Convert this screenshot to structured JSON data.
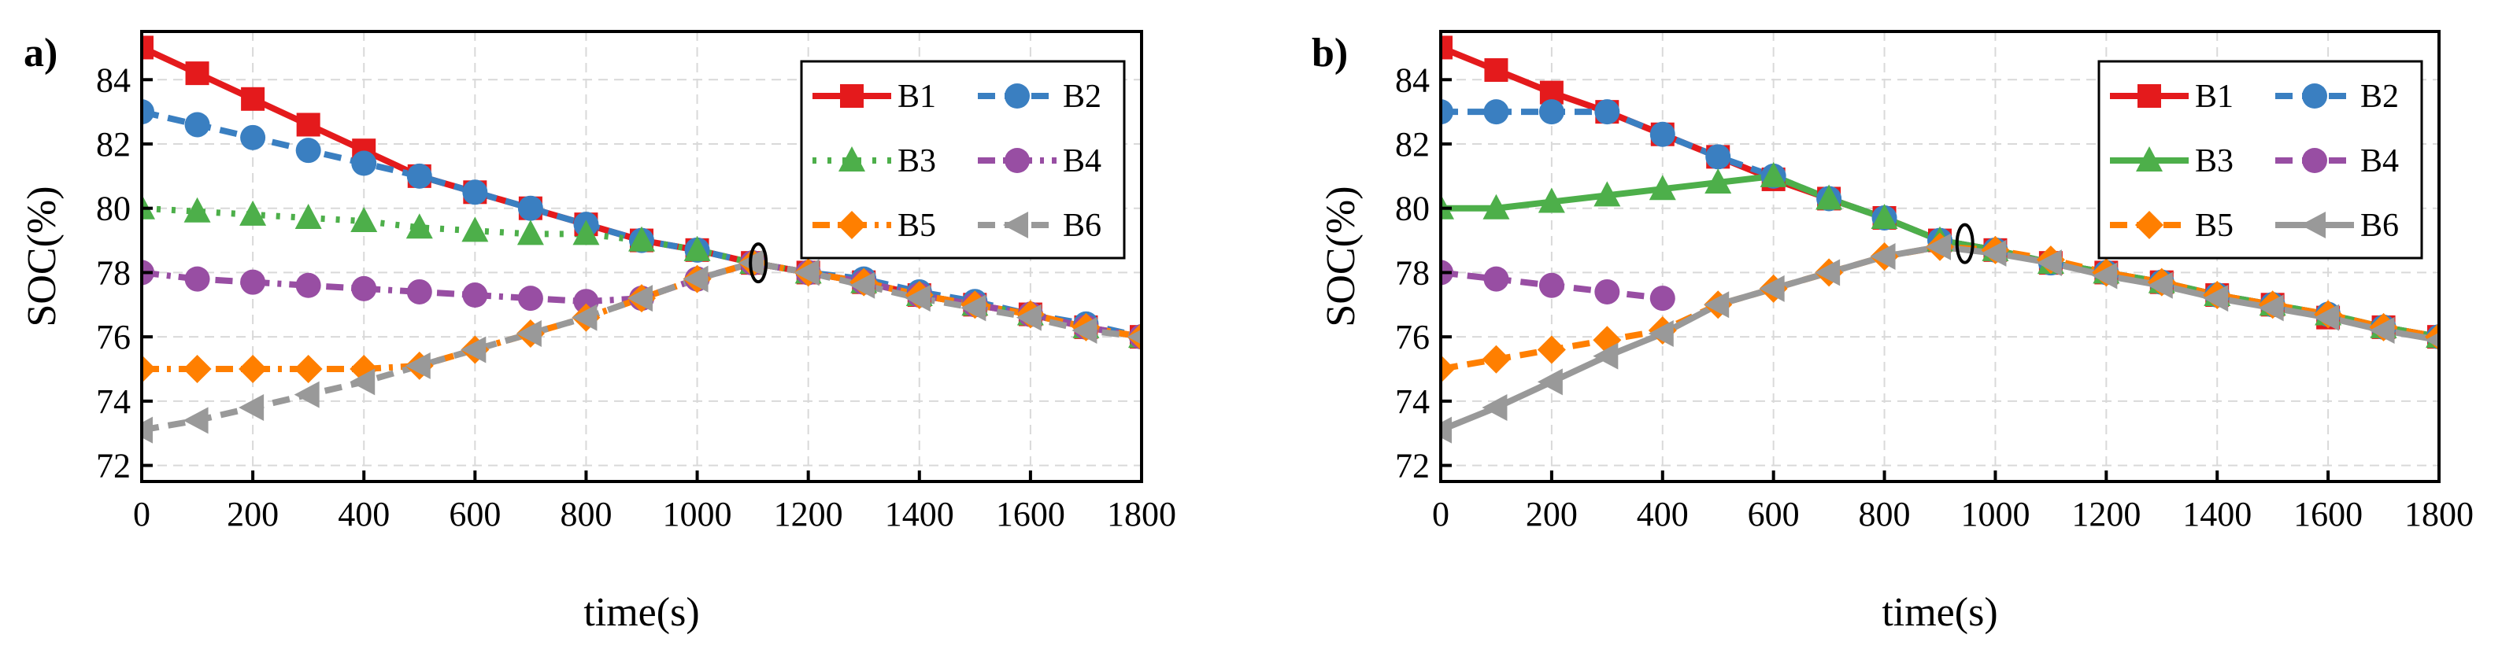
{
  "chart_data": [
    {
      "type": "line",
      "panel_label": "a)",
      "xlabel": "time(s)",
      "ylabel": "SOC(%)",
      "xlim": [
        0,
        1800
      ],
      "ylim": [
        71.5,
        85.5
      ],
      "x_ticks": [
        0,
        200,
        400,
        600,
        800,
        1000,
        1200,
        1400,
        1600,
        1800
      ],
      "y_ticks": [
        72,
        74,
        76,
        78,
        80,
        82,
        84
      ],
      "grid": true,
      "legend_position": "top-right",
      "convergence_marker": {
        "x": 1110,
        "y": 78.3
      },
      "series": [
        {
          "name": "B1",
          "color": "#e41a1c",
          "marker": "square",
          "dash": "solid",
          "x": [
            0,
            100,
            200,
            300,
            400,
            500,
            600,
            700,
            800,
            900,
            1000,
            1100,
            1200,
            1300,
            1400,
            1500,
            1600,
            1700,
            1800
          ],
          "y": [
            85.0,
            84.2,
            83.4,
            82.6,
            81.8,
            81.0,
            80.5,
            80.0,
            79.5,
            79.0,
            78.7,
            78.3,
            78.0,
            77.7,
            77.3,
            77.0,
            76.7,
            76.3,
            76.0
          ]
        },
        {
          "name": "B2",
          "color": "#3a7fc1",
          "marker": "circle",
          "dash": "dash",
          "x": [
            0,
            100,
            200,
            300,
            400,
            500,
            600,
            700,
            800,
            900,
            1000,
            1100,
            1200,
            1300,
            1400,
            1500,
            1600,
            1700,
            1800
          ],
          "y": [
            83.0,
            82.6,
            82.2,
            81.8,
            81.4,
            81.0,
            80.5,
            80.0,
            79.5,
            79.0,
            78.7,
            78.3,
            78.0,
            77.8,
            77.4,
            77.1,
            76.7,
            76.4,
            76.0
          ]
        },
        {
          "name": "B3",
          "color": "#4daf4a",
          "marker": "triangle-up",
          "dash": "dot",
          "x": [
            0,
            100,
            200,
            300,
            400,
            500,
            600,
            700,
            800,
            900,
            1000,
            1100,
            1200,
            1300,
            1400,
            1500,
            1600,
            1700,
            1800
          ],
          "y": [
            80.0,
            79.9,
            79.8,
            79.7,
            79.6,
            79.4,
            79.3,
            79.2,
            79.2,
            79.0,
            78.7,
            78.3,
            78.0,
            77.7,
            77.3,
            77.0,
            76.7,
            76.3,
            76.0
          ]
        },
        {
          "name": "B4",
          "color": "#984ea3",
          "marker": "circle",
          "dash": "dashdot",
          "x": [
            0,
            100,
            200,
            300,
            400,
            500,
            600,
            700,
            800,
            900,
            1000,
            1100,
            1200,
            1300,
            1400,
            1500,
            1600,
            1700,
            1800
          ],
          "y": [
            78.0,
            77.8,
            77.7,
            77.6,
            77.5,
            77.4,
            77.3,
            77.2,
            77.1,
            77.2,
            77.8,
            78.3,
            78.0,
            77.7,
            77.3,
            77.0,
            76.7,
            76.3,
            76.0
          ]
        },
        {
          "name": "B5",
          "color": "#ff7f00",
          "marker": "diamond",
          "dash": "dashdot",
          "x": [
            0,
            100,
            200,
            300,
            400,
            500,
            600,
            700,
            800,
            900,
            1000,
            1100,
            1200,
            1300,
            1400,
            1500,
            1600,
            1700,
            1800
          ],
          "y": [
            75.0,
            75.0,
            75.0,
            75.0,
            75.0,
            75.1,
            75.6,
            76.1,
            76.6,
            77.2,
            77.8,
            78.3,
            78.0,
            77.7,
            77.3,
            77.0,
            76.7,
            76.3,
            76.0
          ]
        },
        {
          "name": "B6",
          "color": "#999999",
          "marker": "triangle-left",
          "dash": "dash",
          "x": [
            0,
            100,
            200,
            300,
            400,
            500,
            600,
            700,
            800,
            900,
            1000,
            1100,
            1200,
            1300,
            1400,
            1500,
            1600,
            1700,
            1800
          ],
          "y": [
            73.1,
            73.4,
            73.8,
            74.2,
            74.6,
            75.1,
            75.6,
            76.1,
            76.6,
            77.2,
            77.8,
            78.3,
            78.0,
            77.6,
            77.2,
            76.9,
            76.6,
            76.2,
            76.0
          ]
        }
      ]
    },
    {
      "type": "line",
      "panel_label": "b)",
      "xlabel": "time(s)",
      "ylabel": "SOC(%)",
      "xlim": [
        0,
        1800
      ],
      "ylim": [
        71.5,
        85.5
      ],
      "x_ticks": [
        0,
        200,
        400,
        600,
        800,
        1000,
        1200,
        1400,
        1600,
        1800
      ],
      "y_ticks": [
        72,
        74,
        76,
        78,
        80,
        82,
        84
      ],
      "grid": true,
      "legend_position": "top-right",
      "convergence_marker": {
        "x": 945,
        "y": 78.9
      },
      "series": [
        {
          "name": "B1",
          "color": "#e41a1c",
          "marker": "square",
          "dash": "solid",
          "x": [
            0,
            100,
            200,
            300,
            400,
            500,
            600,
            700,
            800,
            900,
            1000,
            1100,
            1200,
            1300,
            1400,
            1500,
            1600,
            1700,
            1800
          ],
          "y": [
            85.0,
            84.3,
            83.6,
            83.0,
            82.3,
            81.6,
            80.9,
            80.3,
            79.7,
            79.0,
            78.7,
            78.3,
            78.0,
            77.7,
            77.3,
            77.0,
            76.6,
            76.3,
            76.0
          ]
        },
        {
          "name": "B2",
          "color": "#3a7fc1",
          "marker": "circle",
          "dash": "dash",
          "x": [
            0,
            100,
            200,
            300,
            400,
            500,
            600,
            700,
            800,
            900,
            1000,
            1100,
            1200,
            1300,
            1400,
            1500,
            1600,
            1700,
            1800
          ],
          "y": [
            83.0,
            83.0,
            83.0,
            83.0,
            82.3,
            81.6,
            81.0,
            80.3,
            79.7,
            79.0,
            78.7,
            78.3,
            78.0,
            77.7,
            77.3,
            77.0,
            76.7,
            76.3,
            76.0
          ]
        },
        {
          "name": "B3",
          "color": "#4daf4a",
          "marker": "triangle-up",
          "dash": "solid",
          "x": [
            0,
            100,
            200,
            300,
            400,
            500,
            600,
            700,
            800,
            900,
            1000,
            1100,
            1200,
            1300,
            1400,
            1500,
            1600,
            1700,
            1800
          ],
          "y": [
            80.0,
            80.0,
            80.2,
            80.4,
            80.6,
            80.8,
            81.0,
            80.3,
            79.7,
            79.0,
            78.7,
            78.3,
            78.0,
            77.7,
            77.3,
            77.0,
            76.7,
            76.3,
            76.0
          ]
        },
        {
          "name": "B4",
          "color": "#984ea3",
          "marker": "circle",
          "dash": "dash",
          "x": [
            0,
            100,
            200,
            300,
            400
          ],
          "y": [
            78.0,
            77.8,
            77.6,
            77.4,
            77.2
          ]
        },
        {
          "name": "B5",
          "color": "#ff7f00",
          "marker": "diamond",
          "dash": "dash",
          "x": [
            0,
            100,
            200,
            300,
            400,
            500,
            600,
            700,
            800,
            900,
            1000,
            1100,
            1200,
            1300,
            1400,
            1500,
            1600,
            1700,
            1800
          ],
          "y": [
            75.0,
            75.3,
            75.6,
            75.9,
            76.2,
            77.0,
            77.5,
            78.0,
            78.5,
            78.8,
            78.7,
            78.4,
            78.0,
            77.7,
            77.3,
            77.0,
            76.7,
            76.3,
            76.0
          ]
        },
        {
          "name": "B6",
          "color": "#999999",
          "marker": "triangle-left",
          "dash": "solid",
          "x": [
            0,
            100,
            200,
            300,
            400,
            500,
            600,
            700,
            800,
            900,
            1000,
            1100,
            1200,
            1300,
            1400,
            1500,
            1600,
            1700,
            1800
          ],
          "y": [
            73.1,
            73.8,
            74.6,
            75.4,
            76.1,
            77.0,
            77.5,
            78.0,
            78.5,
            78.8,
            78.6,
            78.3,
            77.9,
            77.6,
            77.2,
            76.9,
            76.6,
            76.2,
            75.9
          ]
        }
      ]
    }
  ]
}
